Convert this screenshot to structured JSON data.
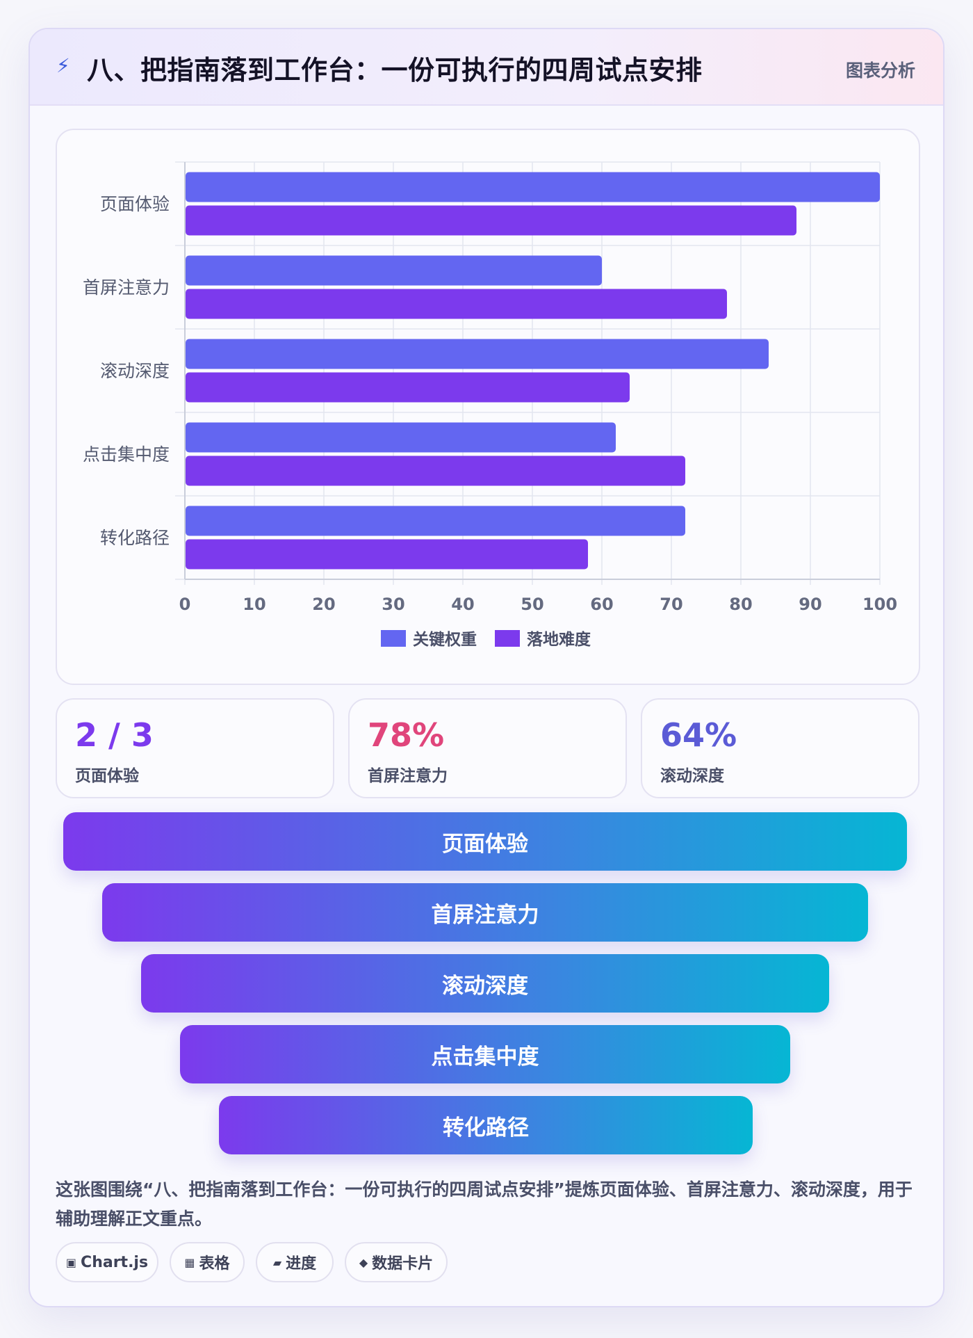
{
  "header": {
    "title": "八、把指南落到工作台：一份可执行的四周试点安排",
    "tag": "图表分析",
    "icon": "lightning-icon"
  },
  "chart_data": {
    "type": "bar",
    "orientation": "horizontal",
    "categories": [
      "页面体验",
      "首屏注意力",
      "滚动深度",
      "点击集中度",
      "转化路径"
    ],
    "series": [
      {
        "name": "关键权重",
        "color": "#6366f1",
        "values": [
          100,
          60,
          84,
          62,
          72
        ]
      },
      {
        "name": "落地难度",
        "color": "#7c3aed",
        "values": [
          88,
          78,
          64,
          72,
          58
        ]
      }
    ],
    "xlim": [
      0,
      100
    ],
    "xticks": [
      0,
      10,
      20,
      30,
      40,
      50,
      60,
      70,
      80,
      90,
      100
    ],
    "grid": true,
    "legend": "bottom"
  },
  "stats": [
    {
      "value": "2 / 3",
      "label": "页面体验",
      "color": "#7c3aed"
    },
    {
      "value": "78%",
      "label": "首屏注意力",
      "color": "#e0457b"
    },
    {
      "value": "64%",
      "label": "滚动深度",
      "color": "#5b5bd6"
    }
  ],
  "funnel": [
    "页面体验",
    "首屏注意力",
    "滚动深度",
    "点击集中度",
    "转化路径"
  ],
  "description": "这张图围绕“八、把指南落到工作台：一份可执行的四周试点安排”提炼页面体验、首屏注意力、滚动深度，用于辅助理解正文重点。",
  "chips": [
    {
      "icon": "▣",
      "label": "Chart.js"
    },
    {
      "icon": "▦",
      "label": "表格"
    },
    {
      "icon": "▰",
      "label": "进度"
    },
    {
      "icon": "◆",
      "label": "数据卡片"
    }
  ]
}
